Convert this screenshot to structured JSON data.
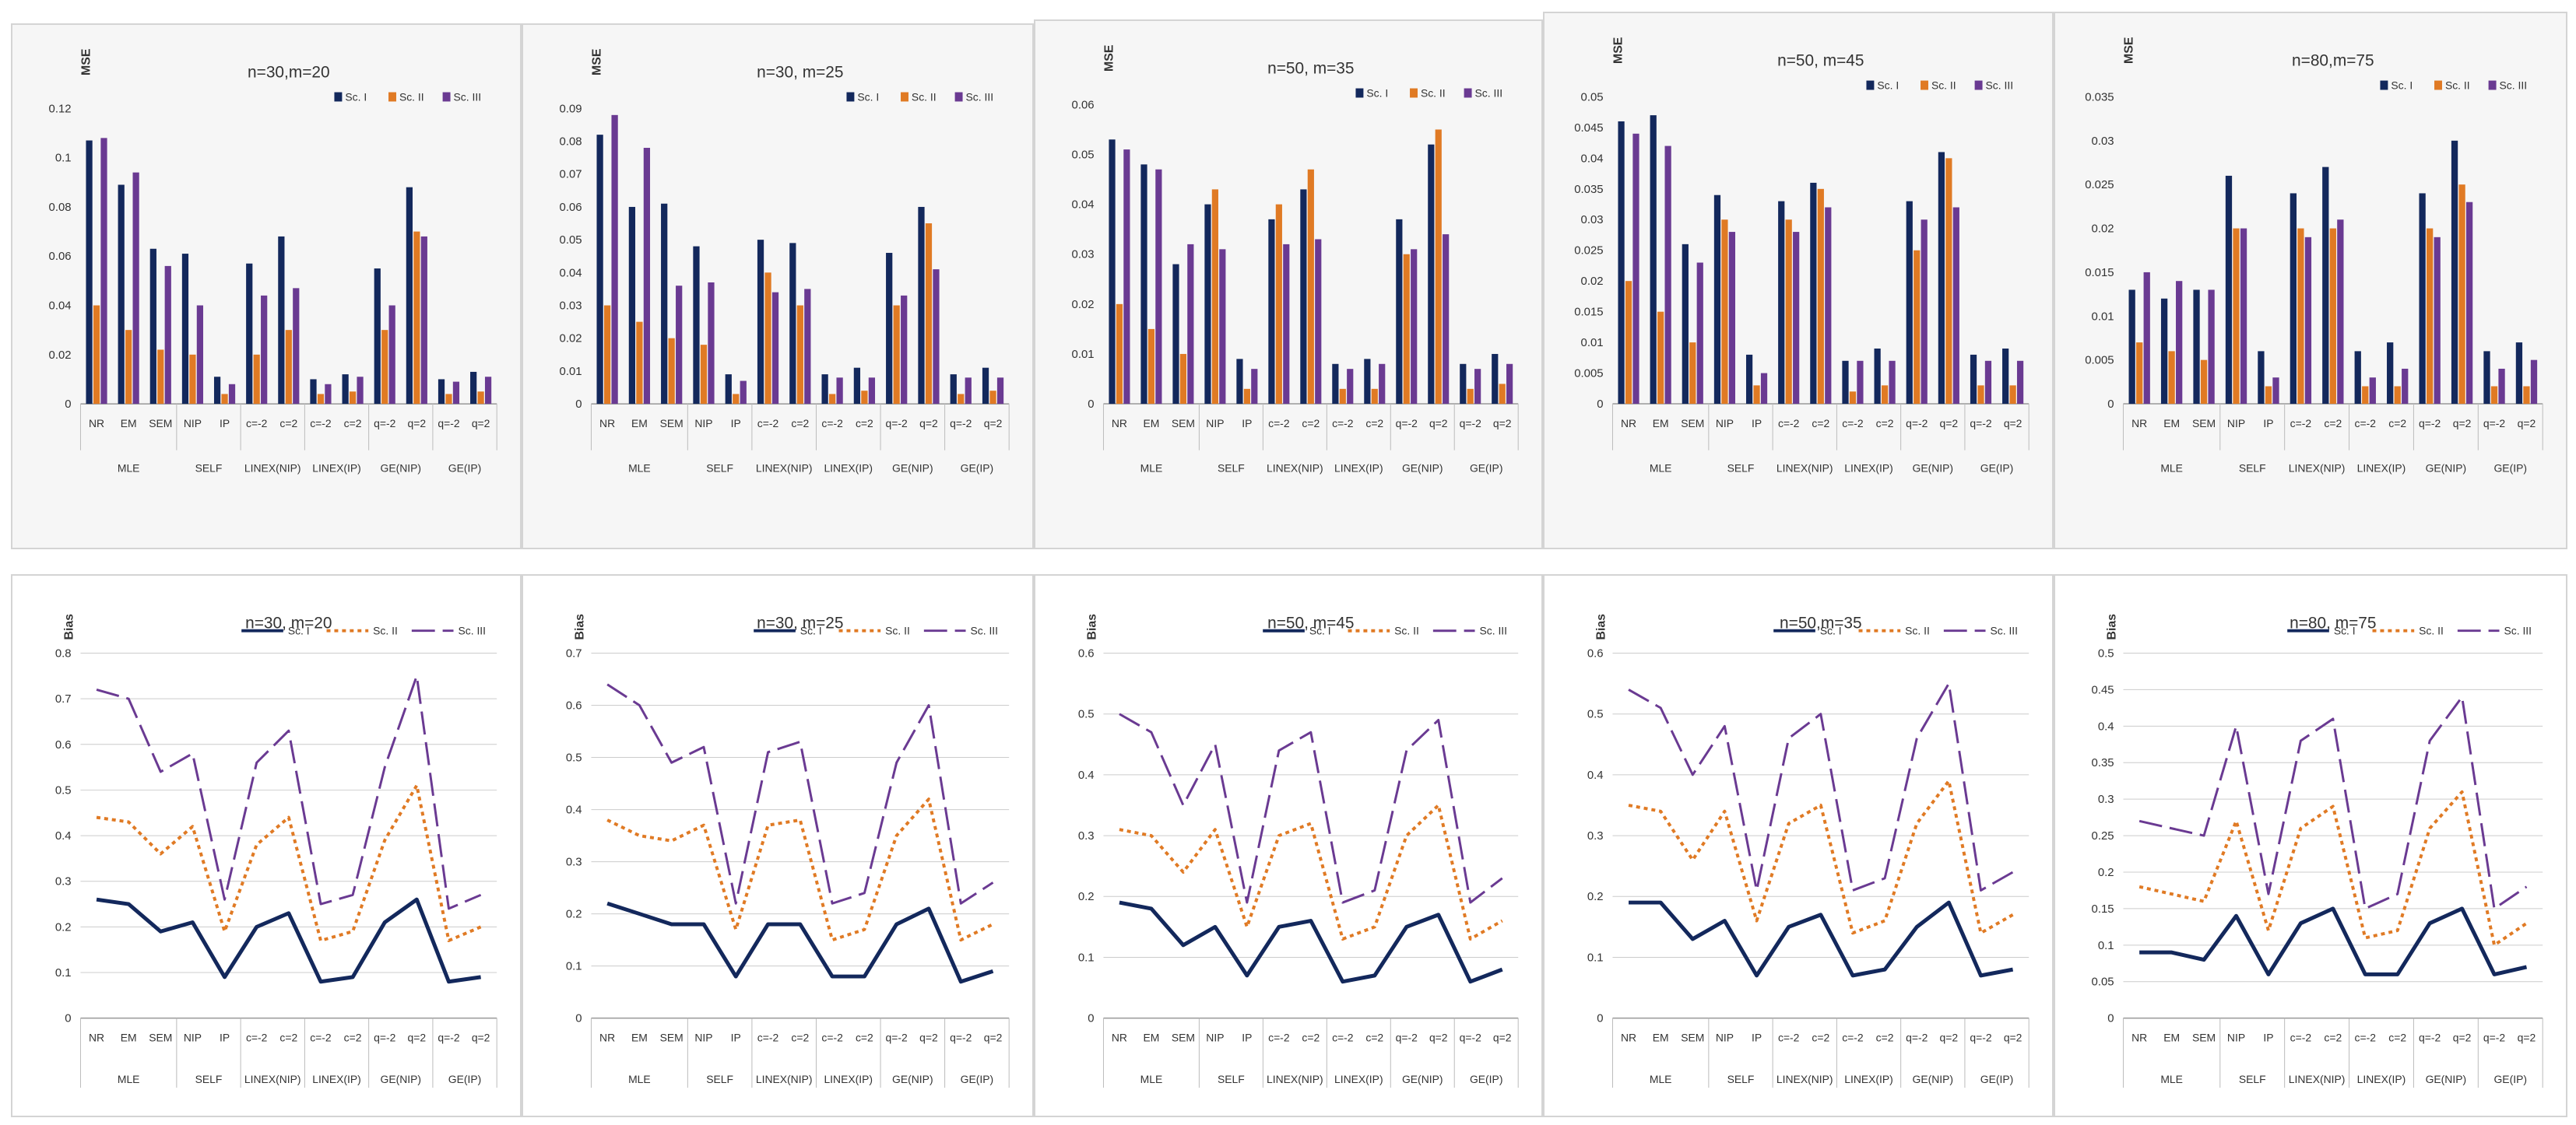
{
  "colors": {
    "sc1": "#13285c",
    "sc2": "#e07a24",
    "sc3": "#6a3a92",
    "grid_line": "#cccccc",
    "axis_text": "#333333"
  },
  "categories": [
    "NR",
    "EM",
    "SEM",
    "NIP",
    "IP",
    "c=-2",
    "c=2",
    "c=-2",
    "c=2",
    "q=-2",
    "q=2",
    "q=-2",
    "q=2"
  ],
  "groups": [
    {
      "label": "MLE",
      "span": 3
    },
    {
      "label": "SELF",
      "span": 2
    },
    {
      "label": "LINEX(NIP)",
      "span": 2
    },
    {
      "label": "LINEX(IP)",
      "span": 2
    },
    {
      "label": "GE(NIP)",
      "span": 2
    },
    {
      "label": "GE(IP)",
      "span": 2
    }
  ],
  "legend": [
    "Sc. I",
    "Sc. II",
    "Sc. III"
  ],
  "chart_data": [
    {
      "type": "bar",
      "title": "n=30,m=20",
      "ylabel": "MSE",
      "ylim": [
        0,
        0.12
      ],
      "yticks": [
        "0",
        "0.02",
        "0.04",
        "0.06",
        "0.08",
        "0.1",
        "0.12"
      ],
      "legend_position": "top-right",
      "series": [
        {
          "name": "Sc. I",
          "values": [
            0.107,
            0.089,
            0.063,
            0.061,
            0.011,
            0.057,
            0.068,
            0.01,
            0.012,
            0.055,
            0.088,
            0.01,
            0.013
          ]
        },
        {
          "name": "Sc. II",
          "values": [
            0.04,
            0.03,
            0.022,
            0.02,
            0.004,
            0.02,
            0.03,
            0.004,
            0.005,
            0.03,
            0.07,
            0.004,
            0.005
          ]
        },
        {
          "name": "Sc. III",
          "values": [
            0.108,
            0.094,
            0.056,
            0.04,
            0.008,
            0.044,
            0.047,
            0.008,
            0.011,
            0.04,
            0.068,
            0.009,
            0.011
          ]
        }
      ]
    },
    {
      "type": "bar",
      "title": "n=30, m=25",
      "ylabel": "MSE",
      "ylim": [
        0,
        0.09
      ],
      "yticks": [
        "0",
        "0.01",
        "0.02",
        "0.03",
        "0.04",
        "0.05",
        "0.06",
        "0.07",
        "0.08",
        "0.09"
      ],
      "legend_position": "top-right",
      "series": [
        {
          "name": "Sc. I",
          "values": [
            0.082,
            0.06,
            0.061,
            0.048,
            0.009,
            0.05,
            0.049,
            0.009,
            0.011,
            0.046,
            0.06,
            0.009,
            0.011
          ]
        },
        {
          "name": "Sc. II",
          "values": [
            0.03,
            0.025,
            0.02,
            0.018,
            0.003,
            0.04,
            0.03,
            0.003,
            0.004,
            0.03,
            0.055,
            0.003,
            0.004
          ]
        },
        {
          "name": "Sc. III",
          "values": [
            0.088,
            0.078,
            0.036,
            0.037,
            0.007,
            0.034,
            0.035,
            0.008,
            0.008,
            0.033,
            0.041,
            0.008,
            0.008
          ]
        }
      ]
    },
    {
      "type": "bar",
      "title": "n=50, m=35",
      "ylabel": "MSE",
      "ylim": [
        0,
        0.06
      ],
      "yticks": [
        "0",
        "0.01",
        "0.02",
        "0.03",
        "0.04",
        "0.05",
        "0.06"
      ],
      "legend_position": "top-right",
      "series": [
        {
          "name": "Sc. I",
          "values": [
            0.053,
            0.048,
            0.028,
            0.04,
            0.009,
            0.037,
            0.043,
            0.008,
            0.009,
            0.037,
            0.052,
            0.008,
            0.01
          ]
        },
        {
          "name": "Sc. II",
          "values": [
            0.02,
            0.015,
            0.01,
            0.043,
            0.003,
            0.04,
            0.047,
            0.003,
            0.003,
            0.03,
            0.055,
            0.003,
            0.004
          ]
        },
        {
          "name": "Sc. III",
          "values": [
            0.051,
            0.047,
            0.032,
            0.031,
            0.007,
            0.032,
            0.033,
            0.007,
            0.008,
            0.031,
            0.034,
            0.007,
            0.008
          ]
        }
      ]
    },
    {
      "type": "bar",
      "title": "n=50, m=45",
      "ylabel": "MSE",
      "ylim": [
        0,
        0.05
      ],
      "yticks": [
        "0",
        "0.005",
        "0.01",
        "0.015",
        "0.02",
        "0.025",
        "0.03",
        "0.035",
        "0.04",
        "0.045",
        "0.05"
      ],
      "legend_position": "top-right",
      "series": [
        {
          "name": "Sc. I",
          "values": [
            0.046,
            0.047,
            0.026,
            0.034,
            0.008,
            0.033,
            0.036,
            0.007,
            0.009,
            0.033,
            0.041,
            0.008,
            0.009
          ]
        },
        {
          "name": "Sc. II",
          "values": [
            0.02,
            0.015,
            0.01,
            0.03,
            0.003,
            0.03,
            0.035,
            0.002,
            0.003,
            0.025,
            0.04,
            0.003,
            0.003
          ]
        },
        {
          "name": "Sc. III",
          "values": [
            0.044,
            0.042,
            0.023,
            0.028,
            0.005,
            0.028,
            0.032,
            0.007,
            0.007,
            0.03,
            0.032,
            0.007,
            0.007
          ]
        }
      ]
    },
    {
      "type": "bar",
      "title": "n=80,m=75",
      "ylabel": "MSE",
      "ylim": [
        0,
        0.035
      ],
      "yticks": [
        "0",
        "0.005",
        "0.01",
        "0.015",
        "0.02",
        "0.025",
        "0.03",
        "0.035"
      ],
      "legend_position": "top-right",
      "series": [
        {
          "name": "Sc. I",
          "values": [
            0.013,
            0.012,
            0.013,
            0.026,
            0.006,
            0.024,
            0.027,
            0.006,
            0.007,
            0.024,
            0.03,
            0.006,
            0.007
          ]
        },
        {
          "name": "Sc. II",
          "values": [
            0.007,
            0.006,
            0.005,
            0.02,
            0.002,
            0.02,
            0.02,
            0.002,
            0.002,
            0.02,
            0.025,
            0.002,
            0.002
          ]
        },
        {
          "name": "Sc. III",
          "values": [
            0.015,
            0.014,
            0.013,
            0.02,
            0.003,
            0.019,
            0.021,
            0.003,
            0.004,
            0.019,
            0.023,
            0.004,
            0.005
          ]
        }
      ]
    },
    {
      "type": "line",
      "title": "n=30, m=20",
      "ylabel": "Bias",
      "ylim": [
        0,
        0.8
      ],
      "yticks": [
        "0",
        "0.1",
        "0.2",
        "0.3",
        "0.4",
        "0.5",
        "0.6",
        "0.7",
        "0.8"
      ],
      "legend_position": "top-right",
      "series": [
        {
          "name": "Sc. I",
          "values": [
            0.26,
            0.25,
            0.19,
            0.21,
            0.09,
            0.2,
            0.23,
            0.08,
            0.09,
            0.21,
            0.26,
            0.08,
            0.09
          ]
        },
        {
          "name": "Sc. II",
          "values": [
            0.44,
            0.43,
            0.36,
            0.42,
            0.19,
            0.38,
            0.44,
            0.17,
            0.19,
            0.39,
            0.51,
            0.17,
            0.2
          ]
        },
        {
          "name": "Sc. III",
          "values": [
            0.72,
            0.7,
            0.54,
            0.58,
            0.26,
            0.56,
            0.63,
            0.25,
            0.27,
            0.55,
            0.75,
            0.24,
            0.27
          ]
        }
      ]
    },
    {
      "type": "line",
      "title": "n=30, m=25",
      "ylabel": "Bias",
      "ylim": [
        0,
        0.7
      ],
      "yticks": [
        "0",
        "0.1",
        "0.2",
        "0.3",
        "0.4",
        "0.5",
        "0.6",
        "0.7"
      ],
      "legend_position": "top-right",
      "series": [
        {
          "name": "Sc. I",
          "values": [
            0.22,
            0.2,
            0.18,
            0.18,
            0.08,
            0.18,
            0.18,
            0.08,
            0.08,
            0.18,
            0.21,
            0.07,
            0.09
          ]
        },
        {
          "name": "Sc. II",
          "values": [
            0.38,
            0.35,
            0.34,
            0.37,
            0.17,
            0.37,
            0.38,
            0.15,
            0.17,
            0.35,
            0.42,
            0.15,
            0.18
          ]
        },
        {
          "name": "Sc. III",
          "values": [
            0.64,
            0.6,
            0.49,
            0.52,
            0.22,
            0.51,
            0.53,
            0.22,
            0.24,
            0.49,
            0.6,
            0.22,
            0.26
          ]
        }
      ]
    },
    {
      "type": "line",
      "title": "n=50, m=45",
      "ylabel": "Bias",
      "ylim": [
        0,
        0.6
      ],
      "yticks": [
        "0",
        "0.1",
        "0.2",
        "0.3",
        "0.4",
        "0.5",
        "0.6"
      ],
      "legend_position": "top-right",
      "series": [
        {
          "name": "Sc. I",
          "values": [
            0.19,
            0.18,
            0.12,
            0.15,
            0.07,
            0.15,
            0.16,
            0.06,
            0.07,
            0.15,
            0.17,
            0.06,
            0.08
          ]
        },
        {
          "name": "Sc. II",
          "values": [
            0.31,
            0.3,
            0.24,
            0.31,
            0.15,
            0.3,
            0.32,
            0.13,
            0.15,
            0.3,
            0.35,
            0.13,
            0.16
          ]
        },
        {
          "name": "Sc. III",
          "values": [
            0.5,
            0.47,
            0.35,
            0.45,
            0.19,
            0.44,
            0.47,
            0.19,
            0.21,
            0.44,
            0.49,
            0.19,
            0.23
          ]
        }
      ]
    },
    {
      "type": "line",
      "title": "n=50,m=35",
      "ylabel": "Bias",
      "ylim": [
        0,
        0.6
      ],
      "yticks": [
        "0",
        "0.1",
        "0.2",
        "0.3",
        "0.4",
        "0.5",
        "0.6"
      ],
      "legend_position": "top-right",
      "series": [
        {
          "name": "Sc. I",
          "values": [
            0.19,
            0.19,
            0.13,
            0.16,
            0.07,
            0.15,
            0.17,
            0.07,
            0.08,
            0.15,
            0.19,
            0.07,
            0.08
          ]
        },
        {
          "name": "Sc. II",
          "values": [
            0.35,
            0.34,
            0.26,
            0.34,
            0.16,
            0.32,
            0.35,
            0.14,
            0.16,
            0.32,
            0.39,
            0.14,
            0.17
          ]
        },
        {
          "name": "Sc. III",
          "values": [
            0.54,
            0.51,
            0.4,
            0.48,
            0.21,
            0.46,
            0.5,
            0.21,
            0.23,
            0.46,
            0.55,
            0.21,
            0.24
          ]
        }
      ]
    },
    {
      "type": "line",
      "title": "n=80, m=75",
      "ylabel": "Bias",
      "ylim": [
        0,
        0.5
      ],
      "yticks": [
        "0",
        "0.05",
        "0.1",
        "0.15",
        "0.2",
        "0.25",
        "0.3",
        "0.35",
        "0.4",
        "0.45",
        "0.5"
      ],
      "legend_position": "top-right",
      "series": [
        {
          "name": "Sc. I",
          "values": [
            0.09,
            0.09,
            0.08,
            0.14,
            0.06,
            0.13,
            0.15,
            0.06,
            0.06,
            0.13,
            0.15,
            0.06,
            0.07
          ]
        },
        {
          "name": "Sc. II",
          "values": [
            0.18,
            0.17,
            0.16,
            0.27,
            0.12,
            0.26,
            0.29,
            0.11,
            0.12,
            0.26,
            0.31,
            0.1,
            0.13
          ]
        },
        {
          "name": "Sc. III",
          "values": [
            0.27,
            0.26,
            0.25,
            0.4,
            0.17,
            0.38,
            0.41,
            0.15,
            0.17,
            0.38,
            0.44,
            0.15,
            0.18
          ]
        }
      ]
    }
  ]
}
